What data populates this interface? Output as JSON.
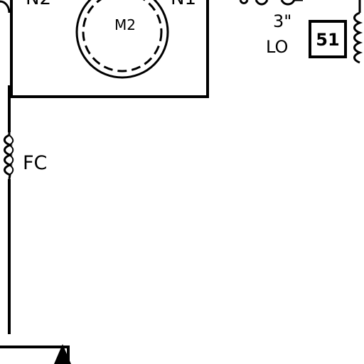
{
  "diagram": {
    "motor_label": "M2",
    "top_left_label": "N2",
    "top_right_label": "N1",
    "size_label": "3\"",
    "lo_label": "LO",
    "box_number": "51",
    "fc_label": "FC"
  },
  "colors": {
    "line": "#000000",
    "background": "#ffffff"
  }
}
